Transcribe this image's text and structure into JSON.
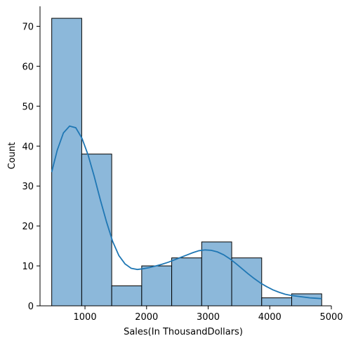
{
  "chart_data": {
    "type": "histogram",
    "title": "",
    "xlabel": "Sales(In ThousandDollars)",
    "ylabel": "Count",
    "xlim": [
      270,
      5000
    ],
    "ylim": [
      0,
      75
    ],
    "grid": false,
    "bins": [
      {
        "start": 460,
        "end": 947,
        "count": 72
      },
      {
        "start": 947,
        "end": 1434,
        "count": 38
      },
      {
        "start": 1434,
        "end": 1921,
        "count": 5
      },
      {
        "start": 1921,
        "end": 2408,
        "count": 10
      },
      {
        "start": 2408,
        "end": 2895,
        "count": 12
      },
      {
        "start": 2895,
        "end": 3382,
        "count": 16
      },
      {
        "start": 3382,
        "end": 3869,
        "count": 12
      },
      {
        "start": 3869,
        "end": 4356,
        "count": 2
      },
      {
        "start": 4356,
        "end": 4843,
        "count": 3
      }
    ],
    "x_ticks": [
      1000,
      2000,
      3000,
      4000,
      5000
    ],
    "y_ticks": [
      0,
      10,
      20,
      30,
      40,
      50,
      60,
      70
    ],
    "kde": {
      "x": [
        460,
        550,
        650,
        750,
        850,
        950,
        1050,
        1150,
        1250,
        1350,
        1450,
        1550,
        1650,
        1750,
        1850,
        1950,
        2050,
        2150,
        2250,
        2350,
        2450,
        2550,
        2650,
        2750,
        2850,
        2950,
        3050,
        3150,
        3250,
        3350,
        3450,
        3550,
        3650,
        3750,
        3850,
        3950,
        4050,
        4150,
        4250,
        4350,
        4450,
        4550,
        4650,
        4750,
        4843
      ],
      "y": [
        33.5,
        39,
        43.3,
        45.0,
        44.6,
        42.0,
        37.8,
        32.4,
        26.5,
        21.0,
        16.1,
        12.6,
        10.5,
        9.4,
        9.1,
        9.3,
        9.6,
        10.0,
        10.4,
        10.9,
        11.5,
        12.1,
        12.7,
        13.3,
        13.8,
        14.0,
        13.9,
        13.5,
        12.8,
        11.8,
        10.6,
        9.3,
        8.0,
        6.8,
        5.7,
        4.8,
        4.0,
        3.4,
        2.9,
        2.6,
        2.4,
        2.2,
        2.0,
        1.9,
        1.8
      ]
    },
    "colors": {
      "bar_fill": "#8cb8da",
      "bar_edge": "#000000",
      "kde_line": "#1f77b4",
      "axis": "#000000"
    }
  }
}
